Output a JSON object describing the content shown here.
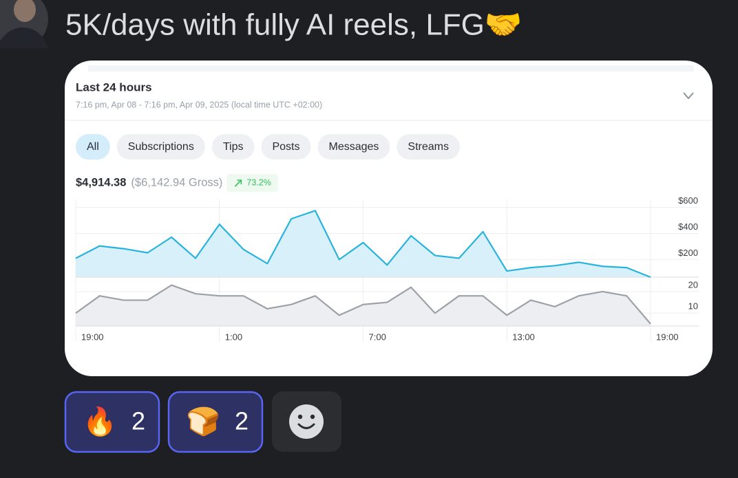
{
  "message": {
    "text": "5K/days with fully AI reels, LFG🤝"
  },
  "card": {
    "title": "Last 24 hours",
    "subtitle": "7:16 pm, Apr 08 - 7:16 pm, Apr 09, 2025 (local time UTC +02:00)",
    "filters": [
      "All",
      "Subscriptions",
      "Tips",
      "Posts",
      "Messages",
      "Streams"
    ],
    "selected_filter": 0,
    "net": "$4,914.38",
    "gross": "($6,142.94 Gross)",
    "change": "73.2%"
  },
  "chart_data": [
    {
      "type": "area",
      "categories": [
        "19:00",
        null,
        null,
        null,
        null,
        null,
        "1:00",
        null,
        null,
        null,
        null,
        null,
        "7:00",
        null,
        null,
        null,
        null,
        null,
        "13:00",
        null,
        null,
        null,
        null,
        null,
        "19:00"
      ],
      "values": [
        210,
        304,
        283,
        252,
        371,
        210,
        470,
        278,
        169,
        512,
        574,
        200,
        330,
        158,
        382,
        231,
        210,
        413,
        112,
        138,
        153,
        179,
        148,
        138,
        65
      ],
      "color": "#27b3dd",
      "fill": "#d8f0f9",
      "ylim": [
        65,
        660
      ],
      "yticks": [
        {
          "value": 200,
          "label": "$200"
        },
        {
          "value": 400,
          "label": "$400"
        },
        {
          "value": 600,
          "label": "$600"
        }
      ],
      "grid": true
    },
    {
      "type": "area",
      "values": [
        10,
        18,
        16,
        16,
        23,
        19,
        18,
        18,
        12,
        14,
        18,
        9,
        14,
        15,
        22,
        10,
        18,
        18,
        9,
        16,
        13,
        18,
        20,
        18,
        5
      ],
      "color": "#9ca1a8",
      "fill": "#eceef1",
      "ylim": [
        4,
        23.5
      ],
      "yticks": [
        10,
        20
      ],
      "grid": true
    }
  ],
  "reactions": [
    {
      "emoji": "🔥",
      "count": 2
    },
    {
      "emoji": "🍞",
      "count": 2
    }
  ]
}
